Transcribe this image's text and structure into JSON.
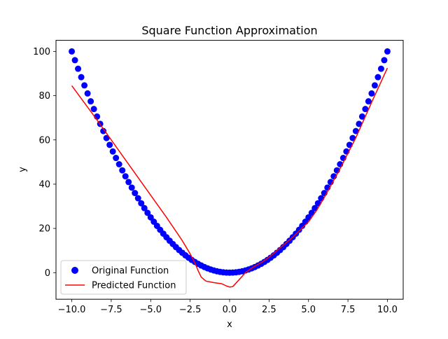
{
  "chart_data": {
    "type": "scatter",
    "title": "Square Function Approximation",
    "xlabel": "x",
    "ylabel": "y",
    "xlim": [
      -11.0,
      11.0
    ],
    "ylim": [
      -12.0,
      105.0
    ],
    "xticks": [
      -10.0,
      -7.5,
      -5.0,
      -2.5,
      0.0,
      2.5,
      5.0,
      7.5,
      10.0
    ],
    "xtick_labels": [
      "−10.0",
      "−7.5",
      "−5.0",
      "−2.5",
      "0.0",
      "2.5",
      "5.0",
      "7.5",
      "10.0"
    ],
    "yticks": [
      0,
      20,
      40,
      60,
      80,
      100
    ],
    "ytick_labels": [
      "0",
      "20",
      "40",
      "60",
      "80",
      "100"
    ],
    "grid": false,
    "legend_position": "lower-left",
    "series": [
      {
        "name": "Original Function",
        "kind": "scatter",
        "color": "#0000ff",
        "marker": "circle",
        "x": [
          -10.0,
          -9.8,
          -9.6,
          -9.4,
          -9.2,
          -9.0,
          -8.8,
          -8.6,
          -8.4,
          -8.2,
          -8.0,
          -7.8,
          -7.6,
          -7.4,
          -7.2,
          -7.0,
          -6.8,
          -6.6,
          -6.4,
          -6.2,
          -6.0,
          -5.8,
          -5.6,
          -5.4,
          -5.2,
          -5.0,
          -4.8,
          -4.6,
          -4.4,
          -4.2,
          -4.0,
          -3.8,
          -3.6,
          -3.4,
          -3.2,
          -3.0,
          -2.8,
          -2.6,
          -2.4,
          -2.2,
          -2.0,
          -1.8,
          -1.6,
          -1.4,
          -1.2,
          -1.0,
          -0.8,
          -0.6,
          -0.4,
          -0.2,
          0.0,
          0.2,
          0.4,
          0.6,
          0.8,
          1.0,
          1.2,
          1.4,
          1.6,
          1.8,
          2.0,
          2.2,
          2.4,
          2.6,
          2.8,
          3.0,
          3.2,
          3.4,
          3.6,
          3.8,
          4.0,
          4.2,
          4.4,
          4.6,
          4.8,
          5.0,
          5.2,
          5.4,
          5.6,
          5.8,
          6.0,
          6.2,
          6.4,
          6.6,
          6.8,
          7.0,
          7.2,
          7.4,
          7.6,
          7.8,
          8.0,
          8.2,
          8.4,
          8.6,
          8.8,
          9.0,
          9.2,
          9.4,
          9.6,
          9.8,
          10.0
        ],
        "y": [
          100.0,
          96.04,
          92.16,
          88.36,
          84.64,
          81.0,
          77.44,
          73.96,
          70.56,
          67.24,
          64.0,
          60.84,
          57.76,
          54.76,
          51.84,
          49.0,
          46.24,
          43.56,
          40.96,
          38.44,
          36.0,
          33.64,
          31.36,
          29.16,
          27.04,
          25.0,
          23.04,
          21.16,
          19.36,
          17.64,
          16.0,
          14.44,
          12.96,
          11.56,
          10.24,
          9.0,
          7.84,
          6.76,
          5.76,
          4.84,
          4.0,
          3.24,
          2.56,
          1.96,
          1.44,
          1.0,
          0.64,
          0.36,
          0.16,
          0.04,
          0.0,
          0.04,
          0.16,
          0.36,
          0.64,
          1.0,
          1.44,
          1.96,
          2.56,
          3.24,
          4.0,
          4.84,
          5.76,
          6.76,
          7.84,
          9.0,
          10.24,
          11.56,
          12.96,
          14.44,
          16.0,
          17.64,
          19.36,
          21.16,
          23.04,
          25.0,
          27.04,
          29.16,
          31.36,
          33.64,
          36.0,
          38.44,
          40.96,
          43.56,
          46.24,
          49.0,
          51.84,
          54.76,
          57.76,
          60.84,
          64.0,
          67.24,
          70.56,
          73.96,
          77.44,
          81.0,
          84.64,
          88.36,
          92.16,
          96.04,
          100.0
        ]
      },
      {
        "name": "Predicted Function",
        "kind": "line",
        "color": "#ff0000",
        "x": [
          -10.0,
          -8.5,
          -7.0,
          -5.5,
          -4.0,
          -3.0,
          -2.5,
          -2.2,
          -2.0,
          -1.8,
          -1.5,
          -1.0,
          -0.5,
          -0.2,
          0.0,
          0.2,
          0.5,
          1.0,
          1.5,
          2.0,
          2.5,
          3.0,
          4.0,
          5.0,
          5.5,
          6.0,
          7.0,
          8.0,
          9.0,
          10.0
        ],
        "y": [
          84.5,
          70.0,
          55.0,
          40.0,
          25.0,
          14.5,
          8.5,
          4.5,
          1.0,
          -2.0,
          -3.8,
          -4.5,
          -5.0,
          -6.0,
          -6.5,
          -6.3,
          -4.0,
          0.0,
          2.5,
          4.5,
          7.0,
          10.0,
          16.0,
          23.0,
          28.0,
          34.0,
          47.0,
          61.0,
          77.0,
          92.5
        ]
      }
    ]
  }
}
